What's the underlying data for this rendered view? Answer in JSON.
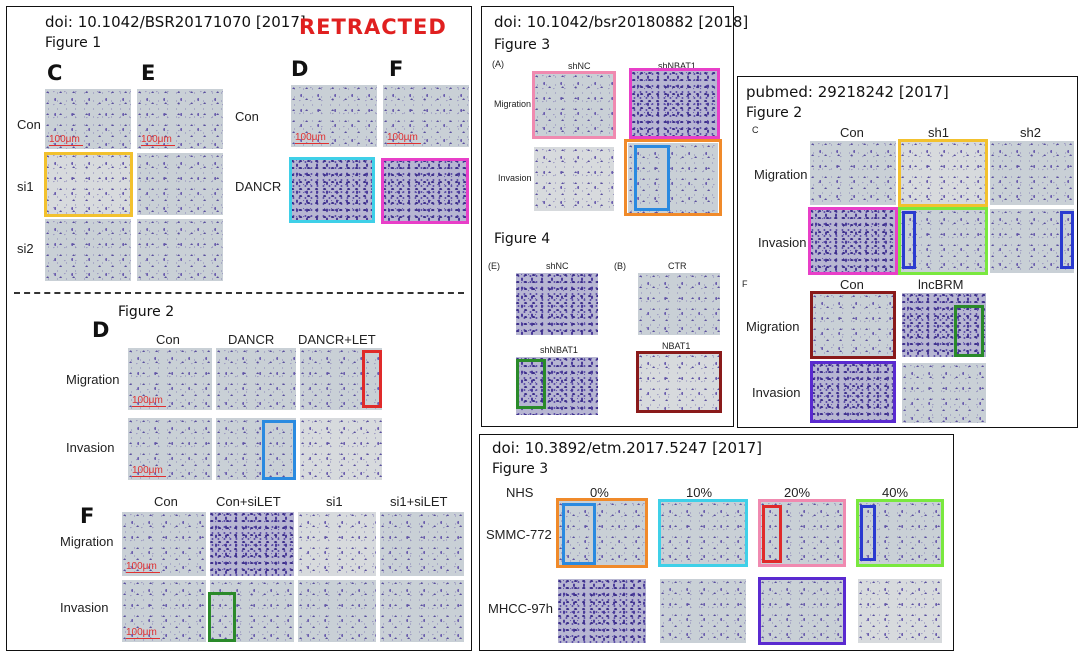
{
  "colors": {
    "retracted": "#e02020",
    "yellow": "#f2c12e",
    "cyan": "#3fd0e8",
    "magenta": "#e83fc8",
    "red": "#e02a2a",
    "blue": "#2a8ae0",
    "green": "#2a8a2a",
    "pink": "#f08ab0",
    "orange": "#f08a2a",
    "darkred": "#8a1a1a",
    "lime": "#7ae83f",
    "navy": "#2a3ad0",
    "purple": "#5a2ad0"
  },
  "p1": {
    "doi": "doi: 10.1042/BSR20171070 [2017]",
    "fig1": "Figure 1",
    "retracted": "RETRACTED",
    "letters": {
      "C": "C",
      "E": "E",
      "D": "D",
      "F": "F"
    },
    "rows_left": [
      "Con",
      "si1",
      "si2"
    ],
    "rows_right": [
      "Con",
      "DANCR"
    ],
    "scale": "100μm",
    "fig2": "Figure 2",
    "d_letter": "D",
    "d_cols": [
      "Con",
      "DANCR",
      "DANCR+LET"
    ],
    "d_rows": [
      "Migration",
      "Invasion"
    ],
    "f_letter": "F",
    "f_cols": [
      "Con",
      "Con+siLET",
      "si1",
      "si1+siLET"
    ],
    "f_rows": [
      "Migration",
      "Invasion"
    ]
  },
  "p2": {
    "doi": "doi: 10.1042/bsr20180882 [2018]",
    "fig3": "Figure 3",
    "panelA": "(A)",
    "cols": [
      "shNC",
      "shNBAT1"
    ],
    "rows": [
      "Migration",
      "Invasion"
    ],
    "fig4": "Figure 4",
    "panelE": "(E)",
    "panelB": "(B)",
    "e_top": "shNC",
    "e_bottom": "shNBAT1",
    "b_top": "CTR",
    "b_bottom": "NBAT1"
  },
  "p3": {
    "pubmed": "pubmed: 29218242 [2017]",
    "fig2": "Figure 2",
    "panelC": "C",
    "cols": [
      "Con",
      "sh1",
      "sh2"
    ],
    "rows": [
      "Migration",
      "Invasion"
    ],
    "panelF": "F",
    "f_cols": [
      "Con",
      "lncBRM"
    ],
    "f_rows": [
      "Migration",
      "Invasion"
    ]
  },
  "p4": {
    "doi": "doi: 10.3892/etm.2017.5247 [2017]",
    "fig3": "Figure 3",
    "nhs": "NHS",
    "cols": [
      "0%",
      "10%",
      "20%",
      "40%"
    ],
    "rows": [
      "SMMC-772",
      "MHCC-97h"
    ]
  }
}
